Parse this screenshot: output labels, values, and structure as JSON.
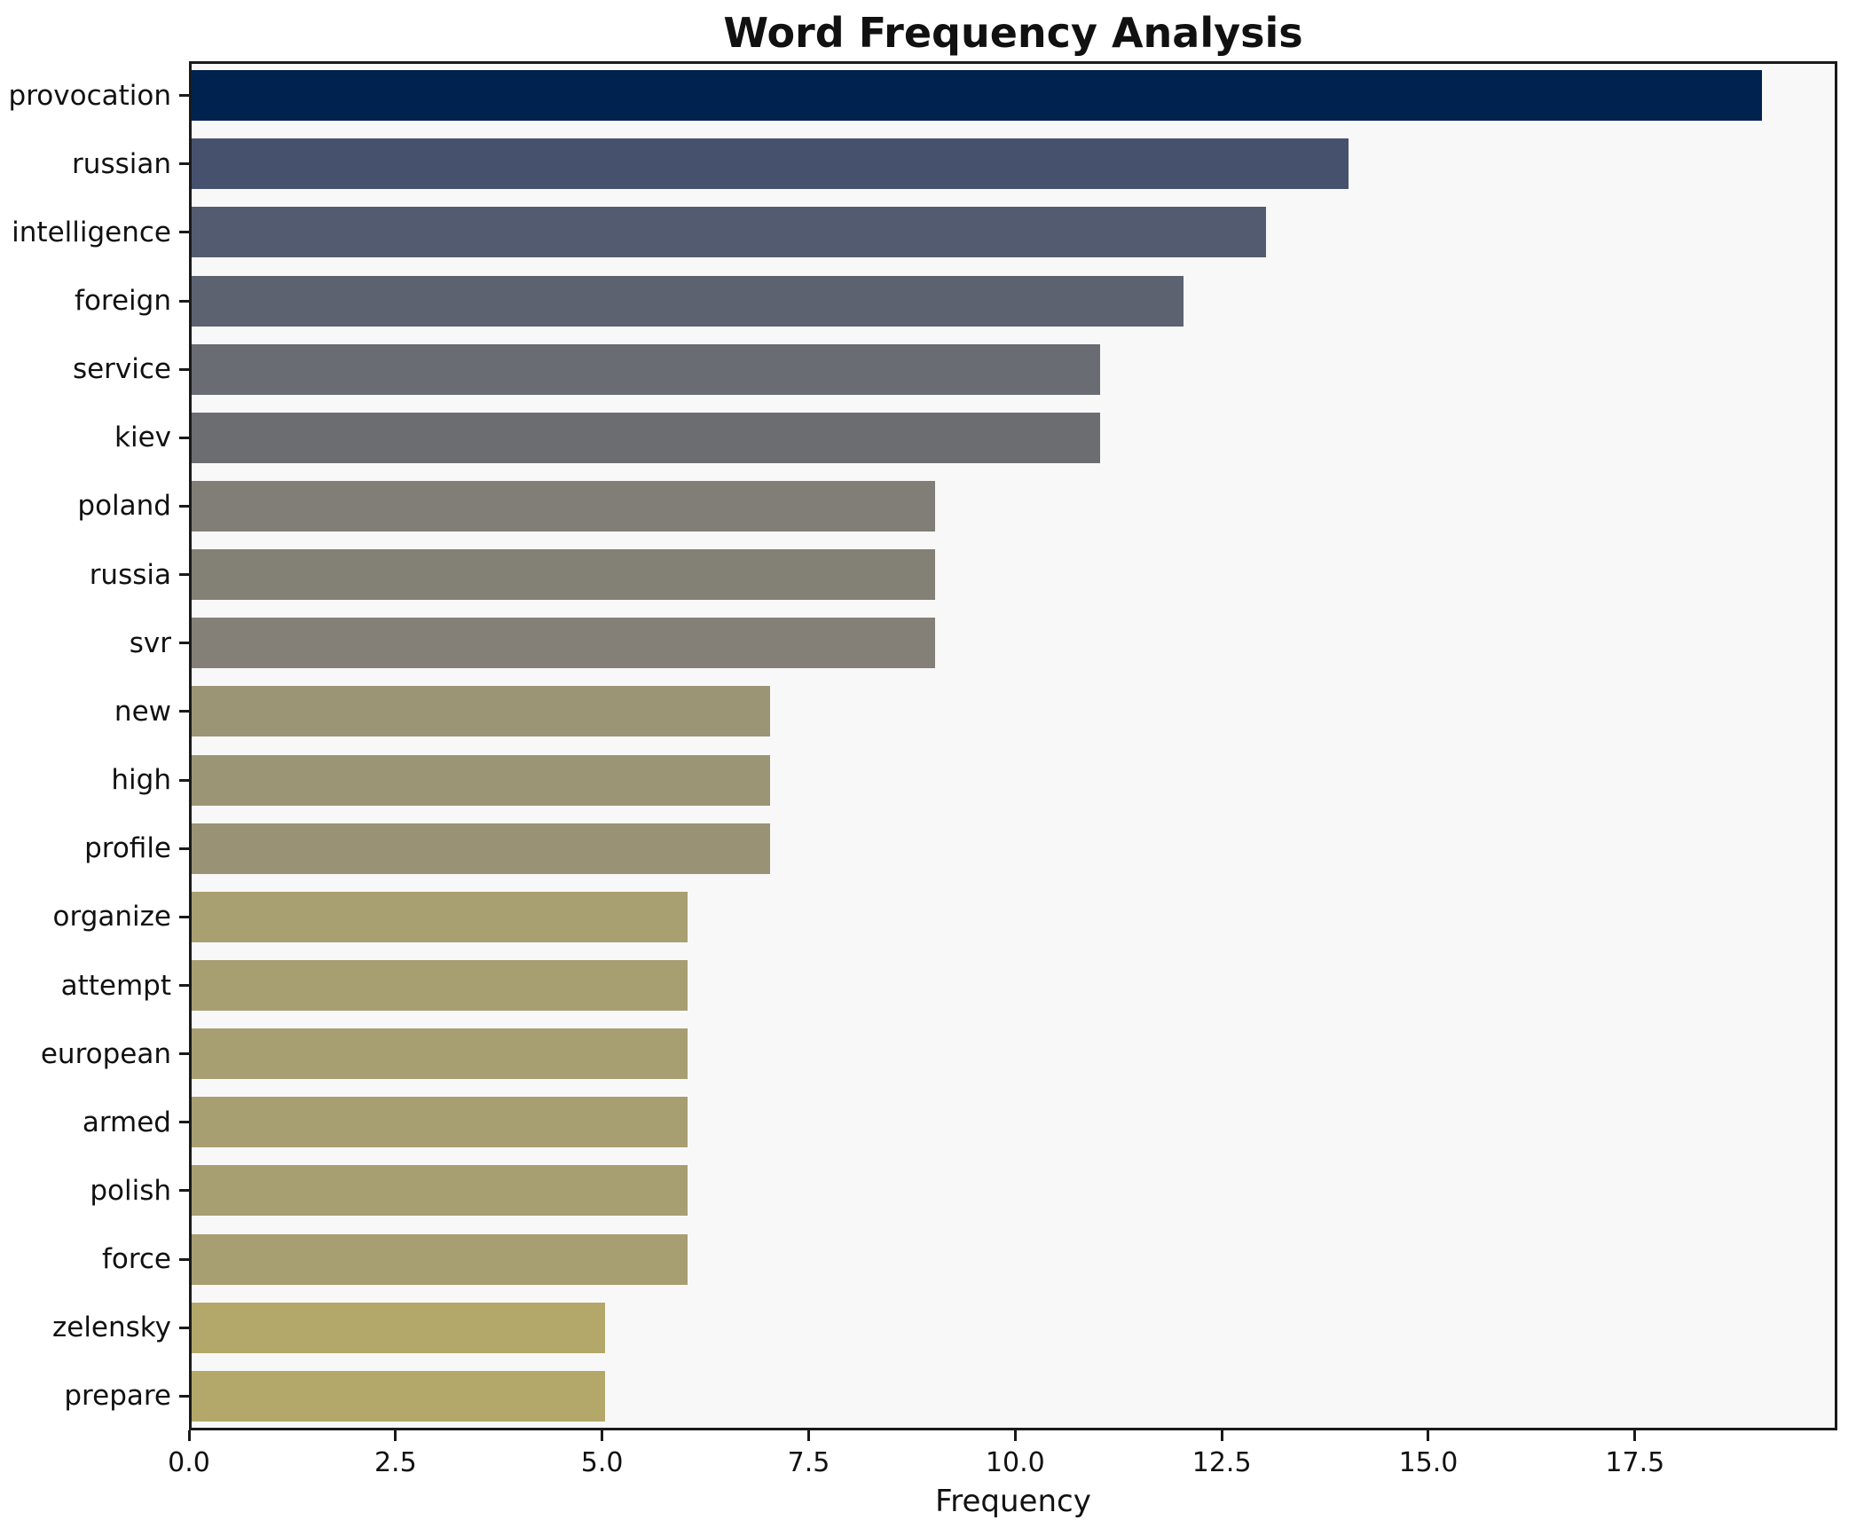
{
  "title": "Word Frequency Analysis",
  "chart_data": {
    "type": "bar",
    "orientation": "horizontal",
    "title": "Word Frequency Analysis",
    "xlabel": "Frequency",
    "ylabel": "",
    "categories": [
      "provocation",
      "russian",
      "intelligence",
      "foreign",
      "service",
      "kiev",
      "poland",
      "russia",
      "svr",
      "new",
      "high",
      "profile",
      "organize",
      "attempt",
      "european",
      "armed",
      "polish",
      "force",
      "zelensky",
      "prepare"
    ],
    "values": [
      19,
      14,
      13,
      12,
      11,
      11,
      9,
      9,
      9,
      7,
      7,
      7,
      6,
      6,
      6,
      6,
      6,
      6,
      5,
      5
    ],
    "bar_colors": [
      "#00224e",
      "#46516d",
      "#525b70",
      "#5d6271",
      "#696c72",
      "#6b6d71",
      "#807e76",
      "#838076",
      "#848077",
      "#9c9575",
      "#9c9575",
      "#999275",
      "#a9a072",
      "#a79e72",
      "#a79e72",
      "#a79e72",
      "#a79e72",
      "#a79e72",
      "#b3a869",
      "#b3a869"
    ],
    "xlim": [
      0,
      19.95
    ],
    "xticks": [
      0,
      2.5,
      5,
      7.5,
      10,
      12.5,
      15,
      17.5
    ],
    "xtick_labels": [
      "0.0",
      "2.5",
      "5.0",
      "7.5",
      "10.0",
      "12.5",
      "15.0",
      "17.5"
    ],
    "grid": false,
    "legend": "none",
    "plot_bg": "#f8f8f8",
    "fig_bg": "#ffffff",
    "spine_color": "#1a1a1a",
    "text_color": "#111111"
  }
}
